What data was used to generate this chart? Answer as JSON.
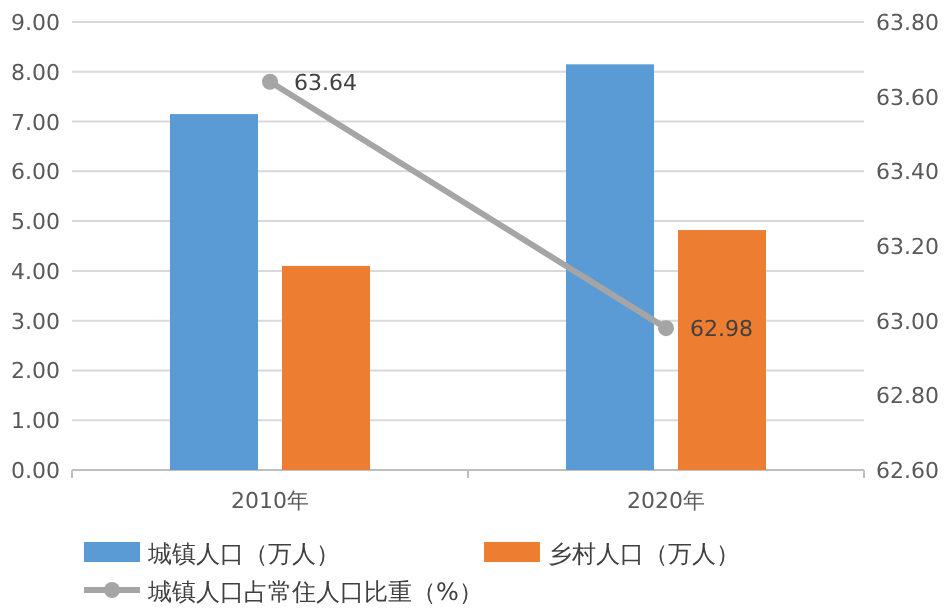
{
  "chart_data": {
    "type": "bar",
    "categories": [
      "2010年",
      "2020年"
    ],
    "series": [
      {
        "name": "城镇人口（万人）",
        "color": "#5b9bd5",
        "values": [
          7.15,
          8.15
        ]
      },
      {
        "name": "乡村人口（万人）",
        "color": "#ed7d31",
        "values": [
          4.1,
          4.82
        ]
      },
      {
        "name": "城镇人口占常住人口比重（%）",
        "type": "line",
        "axis": "y2",
        "color": "#a5a5a5",
        "values": [
          63.64,
          62.98
        ],
        "marker": "circle",
        "value_labels": [
          "63.64",
          "62.98"
        ]
      }
    ],
    "ylim": [
      0,
      9
    ],
    "yticks": [
      {
        "value": 0,
        "label": "0.00"
      },
      {
        "value": 1,
        "label": "1.00"
      },
      {
        "value": 2,
        "label": "2.00"
      },
      {
        "value": 3,
        "label": "3.00"
      },
      {
        "value": 4,
        "label": "4.00"
      },
      {
        "value": 5,
        "label": "5.00"
      },
      {
        "value": 6,
        "label": "6.00"
      },
      {
        "value": 7,
        "label": "7.00"
      },
      {
        "value": 8,
        "label": "8.00"
      },
      {
        "value": 9,
        "label": "9.00"
      }
    ],
    "y2lim": [
      62.6,
      63.8
    ],
    "y2ticks": [
      {
        "value": 62.6,
        "label": "62.60"
      },
      {
        "value": 62.8,
        "label": "62.80"
      },
      {
        "value": 63,
        "label": "63.00"
      },
      {
        "value": 63.2,
        "label": "63.20"
      },
      {
        "value": 63.4,
        "label": "63.40"
      },
      {
        "value": 63.6,
        "label": "63.60"
      },
      {
        "value": 63.8,
        "label": "63.80"
      }
    ],
    "grid": "y",
    "legend": "bottom"
  }
}
